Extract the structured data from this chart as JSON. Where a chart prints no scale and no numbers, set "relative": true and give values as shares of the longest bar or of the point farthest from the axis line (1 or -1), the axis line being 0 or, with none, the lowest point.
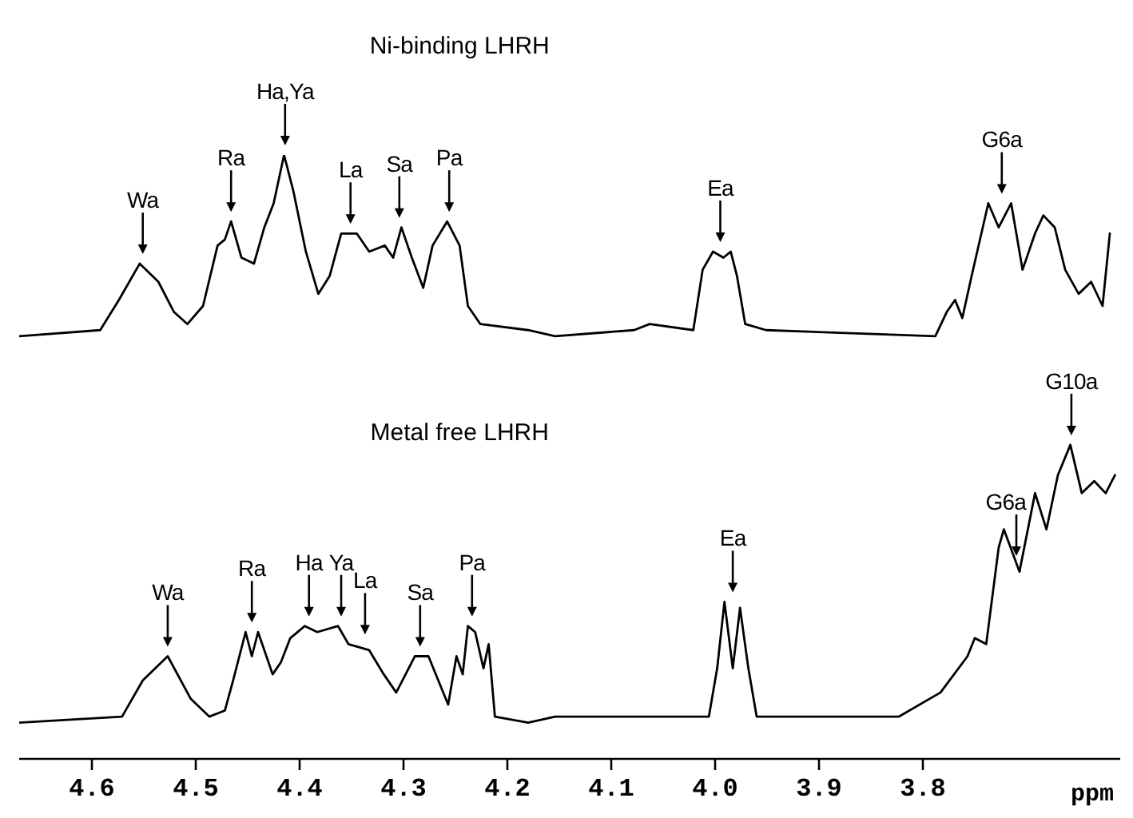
{
  "chart_data": {
    "type": "line",
    "relative": true,
    "xlabel": "ppm",
    "xlim": [
      4.67,
      3.61
    ],
    "xticks": [
      4.6,
      4.5,
      4.4,
      4.3,
      4.2,
      4.1,
      {
        "value": 4,
        "label": "4.0"
      },
      3.9,
      3.8
    ],
    "series": [
      {
        "color": "#000000",
        "x": [
          4.67,
          4.592,
          4.574,
          4.554,
          4.536,
          4.521,
          4.508,
          4.493,
          4.479,
          4.472,
          4.466,
          4.456,
          4.444,
          4.434,
          4.425,
          4.415,
          4.406,
          4.394,
          4.382,
          4.371,
          4.36,
          4.345,
          4.333,
          4.318,
          4.31,
          4.302,
          4.292,
          4.281,
          4.272,
          4.258,
          4.246,
          4.238,
          4.226,
          4.18,
          4.154,
          4.078,
          4.063,
          4.021,
          4.012,
          4.002,
          3.992,
          3.985,
          3.979,
          3.971,
          3.951,
          3.788,
          3.777,
          3.769,
          3.762,
          3.753,
          3.737,
          3.727,
          3.715,
          3.704,
          3.692,
          3.684,
          3.673,
          3.663,
          3.65,
          3.638,
          3.627,
          3.62
        ],
        "values": [
          0.7,
          0.71,
          0.76,
          0.82,
          0.79,
          0.74,
          0.72,
          0.75,
          0.85,
          0.86,
          0.89,
          0.83,
          0.82,
          0.88,
          0.92,
          1,
          0.94,
          0.84,
          0.77,
          0.8,
          0.87,
          0.87,
          0.84,
          0.85,
          0.83,
          0.88,
          0.83,
          0.78,
          0.85,
          0.89,
          0.85,
          0.75,
          0.72,
          0.71,
          0.7,
          0.71,
          0.72,
          0.71,
          0.81,
          0.84,
          0.83,
          0.84,
          0.8,
          0.72,
          0.71,
          0.7,
          0.74,
          0.76,
          0.73,
          0.8,
          0.92,
          0.88,
          0.92,
          0.81,
          0.87,
          0.9,
          0.88,
          0.81,
          0.77,
          0.79,
          0.75,
          0.87
        ]
      },
      {
        "color": "#000000",
        "x": [
          4.67,
          4.571,
          4.551,
          4.527,
          4.505,
          4.487,
          4.472,
          4.464,
          4.452,
          4.446,
          4.44,
          4.426,
          4.418,
          4.409,
          4.395,
          4.383,
          4.363,
          4.353,
          4.333,
          4.319,
          4.307,
          4.289,
          4.276,
          4.257,
          4.249,
          4.243,
          4.238,
          4.231,
          4.223,
          4.218,
          4.212,
          4.18,
          4.154,
          4.006,
          3.998,
          3.991,
          3.983,
          3.976,
          3.968,
          3.96,
          3.823,
          3.783,
          3.757,
          3.75,
          3.739,
          3.727,
          3.722,
          3.707,
          3.692,
          3.681,
          3.67,
          3.658,
          3.647,
          3.635,
          3.624,
          3.615
        ],
        "values": [
          0.06,
          0.07,
          0.13,
          0.17,
          0.1,
          0.07,
          0.08,
          0.13,
          0.21,
          0.17,
          0.21,
          0.14,
          0.16,
          0.2,
          0.22,
          0.21,
          0.22,
          0.19,
          0.18,
          0.14,
          0.11,
          0.17,
          0.17,
          0.09,
          0.17,
          0.14,
          0.22,
          0.21,
          0.15,
          0.19,
          0.07,
          0.06,
          0.07,
          0.07,
          0.15,
          0.26,
          0.15,
          0.25,
          0.15,
          0.07,
          0.07,
          0.11,
          0.17,
          0.2,
          0.19,
          0.35,
          0.38,
          0.31,
          0.44,
          0.38,
          0.47,
          0.52,
          0.44,
          0.46,
          0.44,
          0.47
        ]
      }
    ],
    "annotations": [
      "Ni-binding LHRH",
      "Metal free LHRH",
      {
        "text": "Wa",
        "x": 4.551,
        "y": 0.82
      },
      {
        "text": "Ra",
        "x": 4.466,
        "y": 0.89
      },
      {
        "text": "Ha,Ya",
        "x": 4.414,
        "y": 1
      },
      {
        "text": "La",
        "x": 4.351,
        "y": 0.87
      },
      {
        "text": "Sa",
        "x": 4.304,
        "y": 0.88
      },
      {
        "text": "Pa",
        "x": 4.256,
        "y": 0.89
      },
      {
        "text": "Ea",
        "x": 3.995,
        "y": 0.84
      },
      {
        "text": "G6a",
        "x": 3.724,
        "y": 0.92
      },
      {
        "text": "Wa",
        "x": 4.527,
        "y": 0.17
      },
      {
        "text": "Ra",
        "x": 4.446,
        "y": 0.21
      },
      {
        "text": "Ha",
        "x": 4.391,
        "y": 0.22
      },
      {
        "text": "Ya",
        "x": 4.36,
        "y": 0.22
      },
      {
        "text": "La",
        "x": 4.337,
        "y": 0.19
      },
      {
        "text": "Sa",
        "x": 4.284,
        "y": 0.17
      },
      {
        "text": "Pa",
        "x": 4.234,
        "y": 0.22
      },
      {
        "text": "Ea",
        "x": 3.983,
        "y": 0.26
      },
      {
        "text": "G6a",
        "x": 3.71,
        "y": 0.32
      },
      {
        "text": "G10a",
        "x": 3.657,
        "y": 0.52
      }
    ]
  }
}
